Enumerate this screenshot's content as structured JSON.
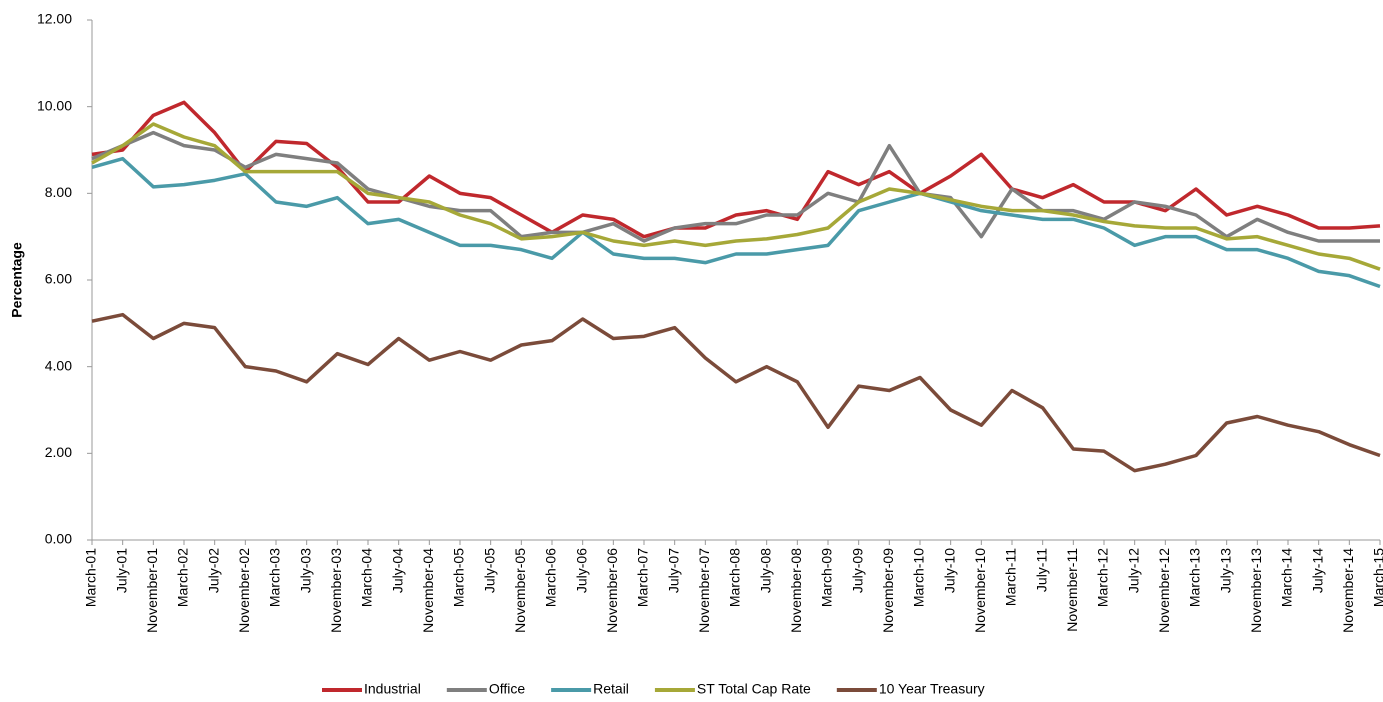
{
  "chart_data": {
    "type": "line",
    "y_label": "Percentage",
    "categories": [
      "March-01",
      "July-01",
      "November-01",
      "March-02",
      "July-02",
      "November-02",
      "March-03",
      "July-03",
      "November-03",
      "March-04",
      "July-04",
      "November-04",
      "March-05",
      "July-05",
      "November-05",
      "March-06",
      "July-06",
      "November-06",
      "March-07",
      "July-07",
      "November-07",
      "March-08",
      "July-08",
      "November-08",
      "March-09",
      "July-09",
      "November-09",
      "March-10",
      "July-10",
      "November-10",
      "March-11",
      "July-11",
      "November-11",
      "March-12",
      "July-12",
      "November-12",
      "March-13",
      "July-13",
      "November-13",
      "March-14",
      "July-14",
      "November-14",
      "March-15"
    ],
    "series": [
      {
        "name": "Industrial",
        "color": "#c0282d",
        "values": [
          8.9,
          9.0,
          9.8,
          10.1,
          9.4,
          8.5,
          9.2,
          9.15,
          8.6,
          7.8,
          7.8,
          8.4,
          8.0,
          7.9,
          7.5,
          7.1,
          7.5,
          7.4,
          7.0,
          7.2,
          7.2,
          7.5,
          7.6,
          7.4,
          8.5,
          8.2,
          8.5,
          8.0,
          8.4,
          8.9,
          8.1,
          7.9,
          8.2,
          7.8,
          7.8,
          7.6,
          8.1,
          7.5,
          7.7,
          7.5,
          7.2,
          7.2,
          7.25
        ]
      },
      {
        "name": "Office",
        "color": "#7f7f7f",
        "values": [
          8.8,
          9.1,
          9.4,
          9.1,
          9.0,
          8.6,
          8.9,
          8.8,
          8.7,
          8.1,
          7.9,
          7.7,
          7.6,
          7.6,
          7.0,
          7.1,
          7.1,
          7.3,
          6.9,
          7.2,
          7.3,
          7.3,
          7.5,
          7.5,
          8.0,
          7.8,
          9.1,
          8.0,
          7.9,
          7.0,
          8.1,
          7.6,
          7.6,
          7.4,
          7.8,
          7.7,
          7.5,
          7.0,
          7.4,
          7.1,
          6.9,
          6.9,
          6.9
        ]
      },
      {
        "name": "Retail",
        "color": "#4a9aa8",
        "values": [
          8.6,
          8.8,
          8.15,
          8.2,
          8.3,
          8.45,
          7.8,
          7.7,
          7.9,
          7.3,
          7.4,
          7.1,
          6.8,
          6.8,
          6.7,
          6.5,
          7.1,
          6.6,
          6.5,
          6.5,
          6.4,
          6.6,
          6.6,
          6.7,
          6.8,
          7.6,
          7.8,
          8.0,
          7.8,
          7.6,
          7.5,
          7.4,
          7.4,
          7.2,
          6.8,
          7.0,
          7.0,
          6.7,
          6.7,
          6.5,
          6.2,
          6.1,
          5.85
        ]
      },
      {
        "name": "ST Total Cap Rate",
        "color": "#a6a838",
        "values": [
          8.7,
          9.1,
          9.6,
          9.3,
          9.1,
          8.5,
          8.5,
          8.5,
          8.5,
          8.0,
          7.9,
          7.8,
          7.5,
          7.3,
          6.95,
          7.0,
          7.1,
          6.9,
          6.8,
          6.9,
          6.8,
          6.9,
          6.95,
          7.05,
          7.2,
          7.8,
          8.1,
          8.0,
          7.85,
          7.7,
          7.6,
          7.6,
          7.5,
          7.35,
          7.25,
          7.2,
          7.2,
          6.95,
          7.0,
          6.8,
          6.6,
          6.5,
          6.25
        ]
      },
      {
        "name": "10 Year Treasury",
        "color": "#7b4b3a",
        "values": [
          5.05,
          5.2,
          4.65,
          5.0,
          4.9,
          4.0,
          3.9,
          3.65,
          4.3,
          4.05,
          4.65,
          4.15,
          4.35,
          4.15,
          4.5,
          4.6,
          5.1,
          4.65,
          4.7,
          4.9,
          4.2,
          3.65,
          4.0,
          3.65,
          2.6,
          3.55,
          3.45,
          3.75,
          3.0,
          2.65,
          3.45,
          3.05,
          2.1,
          2.05,
          1.6,
          1.75,
          1.95,
          2.7,
          2.85,
          2.65,
          2.5,
          2.2,
          1.95
        ]
      }
    ],
    "ylim": [
      0,
      12
    ],
    "yticks": [
      {
        "value": 0,
        "label": "0.00"
      },
      {
        "value": 2,
        "label": "2.00"
      },
      {
        "value": 4,
        "label": "4.00"
      },
      {
        "value": 6,
        "label": "6.00"
      },
      {
        "value": 8,
        "label": "8.00"
      },
      {
        "value": 10,
        "label": "10.00"
      },
      {
        "value": 12,
        "label": "12.00"
      }
    ],
    "grid": false,
    "legend": "bottom"
  }
}
